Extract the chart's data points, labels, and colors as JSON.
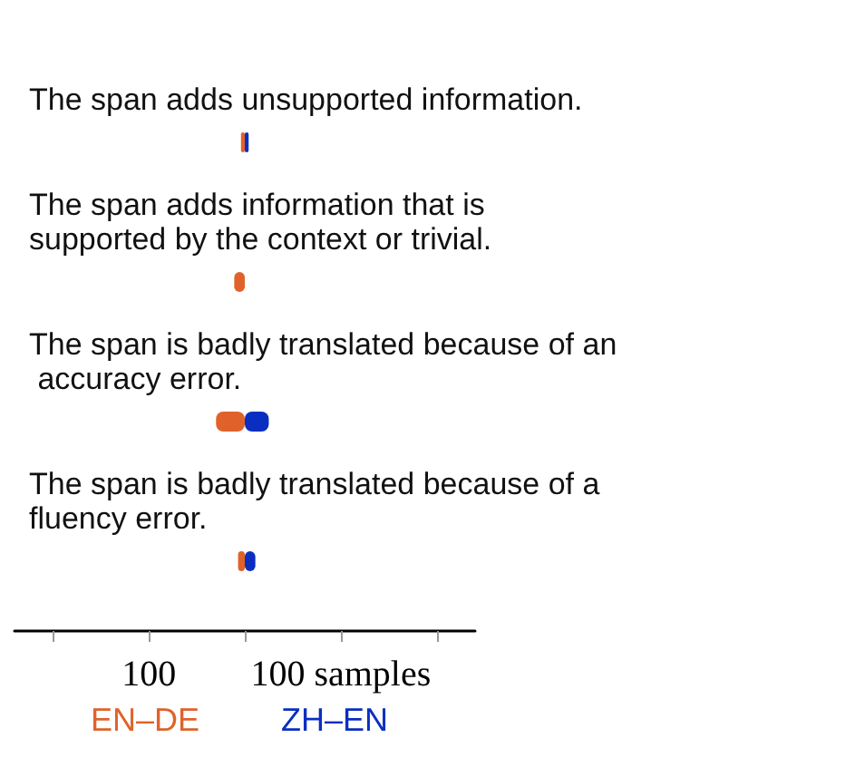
{
  "chart_data": {
    "type": "bar",
    "orientation": "horizontal",
    "stacked": true,
    "categories": [
      "The span adds unsupported information.",
      "The span adds information that is supported by the context or trivial.",
      "The span is badly translated because of an accuracy error.",
      "The span is badly translated because of a fluency error."
    ],
    "series": [
      {
        "name": "EN–DE",
        "color": "#e0622a",
        "values": [
          -4,
          -11,
          -30,
          -7
        ]
      },
      {
        "name": "ZH–EN",
        "color": "#0a2fc0",
        "values": [
          4,
          0,
          25,
          11
        ]
      }
    ],
    "xlim": [
      -240,
      240
    ],
    "xticks": [
      {
        "value": -200,
        "label": null
      },
      {
        "value": -100,
        "label": "100"
      },
      {
        "value": 0,
        "label": null
      },
      {
        "value": 100,
        "label": "100 samples"
      },
      {
        "value": 200,
        "label": null
      }
    ],
    "legend": "bottom",
    "grid": false
  }
}
